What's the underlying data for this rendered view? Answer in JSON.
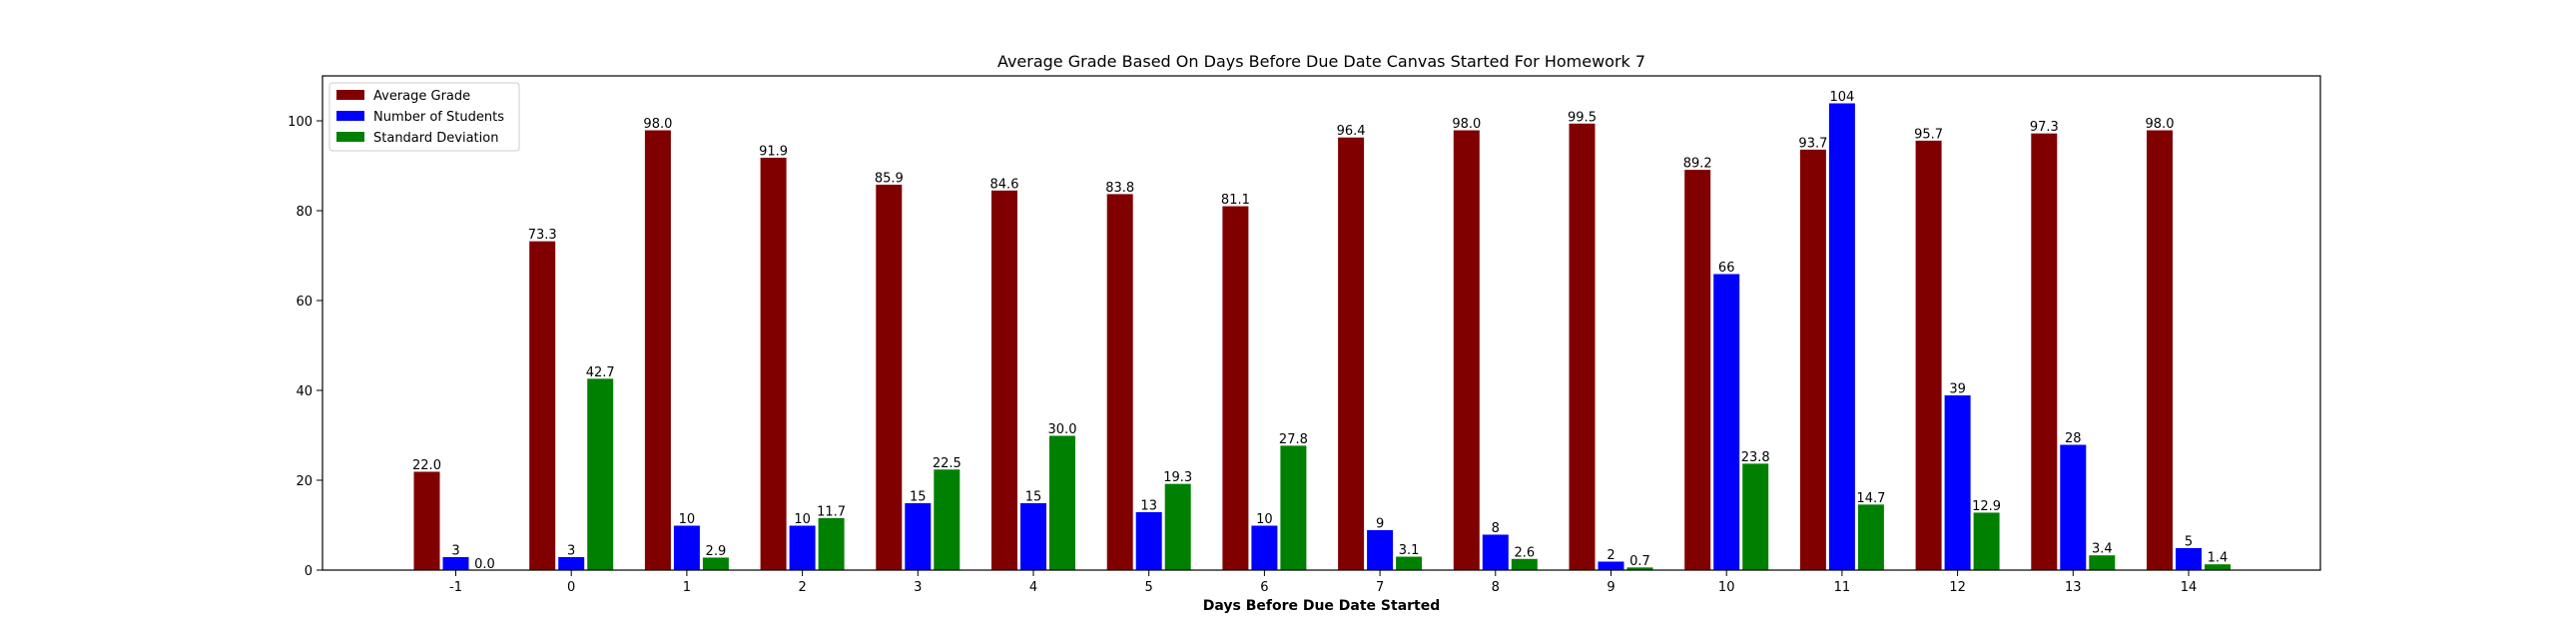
{
  "chart_data": {
    "type": "bar",
    "title": "Average Grade Based On Days Before Due Date Canvas Started For Homework 7",
    "xlabel": "Days Before Due Date Started",
    "ylabel": "",
    "ylim": [
      0,
      110
    ],
    "yticks": [
      0,
      20,
      40,
      60,
      80,
      100
    ],
    "categories": [
      "-1",
      "0",
      "1",
      "2",
      "3",
      "4",
      "5",
      "6",
      "7",
      "8",
      "9",
      "10",
      "11",
      "12",
      "13",
      "14"
    ],
    "legend_position": "top-left",
    "grid": false,
    "series": [
      {
        "name": "Average Grade",
        "color": "#800000",
        "values": [
          22.0,
          73.3,
          98.0,
          91.9,
          85.9,
          84.6,
          83.8,
          81.1,
          96.4,
          98.0,
          99.5,
          89.2,
          93.7,
          95.7,
          97.3,
          98.0
        ],
        "labels": [
          "22.0",
          "73.3",
          "98.0",
          "91.9",
          "85.9",
          "84.6",
          "83.8",
          "81.1",
          "96.4",
          "98.0",
          "99.5",
          "89.2",
          "93.7",
          "95.7",
          "97.3",
          "98.0"
        ]
      },
      {
        "name": "Number of Students",
        "color": "#0000ff",
        "values": [
          3,
          3,
          10,
          10,
          15,
          15,
          13,
          10,
          9,
          8,
          2,
          66,
          104,
          39,
          28,
          5
        ],
        "labels": [
          "3",
          "3",
          "10",
          "10",
          "15",
          "15",
          "13",
          "10",
          "9",
          "8",
          "2",
          "66",
          "104",
          "39",
          "28",
          "5"
        ]
      },
      {
        "name": "Standard Deviation",
        "color": "#008000",
        "values": [
          0.0,
          42.7,
          2.9,
          11.7,
          22.5,
          30.0,
          19.3,
          27.8,
          3.1,
          2.6,
          0.7,
          23.8,
          14.7,
          12.9,
          3.4,
          1.4
        ],
        "labels": [
          "0.0",
          "42.7",
          "2.9",
          "11.7",
          "22.5",
          "30.0",
          "19.3",
          "27.8",
          "3.1",
          "2.6",
          "0.7",
          "23.8",
          "14.7",
          "12.9",
          "3.4",
          "1.4"
        ]
      }
    ]
  }
}
